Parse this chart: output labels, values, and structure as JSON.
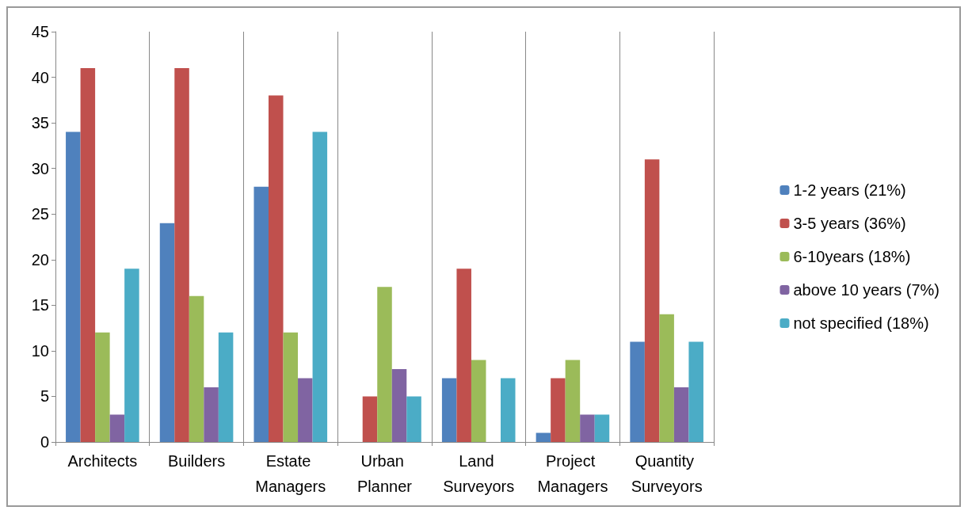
{
  "chart_data": {
    "type": "bar",
    "categories": [
      "Architects",
      "Builders",
      "Estate Managers",
      "Urban Planner",
      "Land Surveyors",
      "Project Managers",
      "Quantity Surveyors"
    ],
    "series": [
      {
        "name": "1-2 years (21%)",
        "color": "#4f81bd",
        "values": [
          34,
          24,
          28,
          0,
          7,
          1,
          11
        ]
      },
      {
        "name": "3-5 years (36%)",
        "color": "#c0504d",
        "values": [
          41,
          41,
          38,
          5,
          19,
          7,
          31
        ]
      },
      {
        "name": "6-10years (18%)",
        "color": "#9bbb59",
        "values": [
          12,
          16,
          12,
          17,
          9,
          9,
          14
        ]
      },
      {
        "name": "above 10 years (7%)",
        "color": "#8064a2",
        "values": [
          3,
          6,
          7,
          8,
          0,
          3,
          6
        ]
      },
      {
        "name": "not specified (18%)",
        "color": "#4bacc6",
        "values": [
          19,
          12,
          34,
          5,
          7,
          3,
          11
        ]
      }
    ],
    "ylim": [
      0,
      45
    ],
    "yticks": [
      0,
      5,
      10,
      15,
      20,
      25,
      30,
      35,
      40,
      45
    ],
    "grid": "x",
    "legend": "right"
  }
}
